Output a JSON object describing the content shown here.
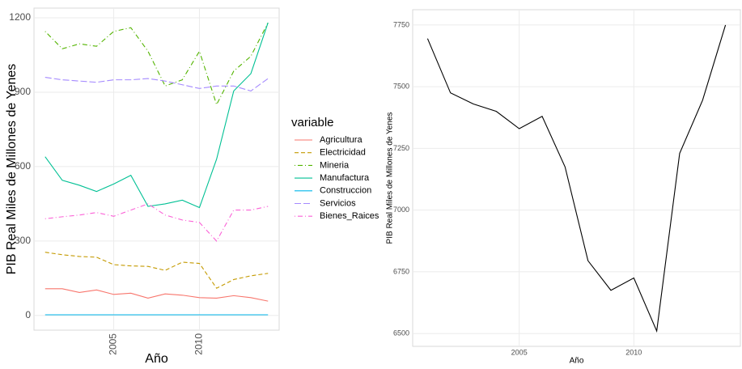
{
  "chart_data": [
    {
      "type": "line",
      "x_label": "Año",
      "y_label": "PIB Real Miles de Millones de Yenes",
      "x": [
        2001,
        2002,
        2003,
        2004,
        2005,
        2006,
        2007,
        2008,
        2009,
        2010,
        2011,
        2012,
        2013,
        2014
      ],
      "xlim": [
        2000.35,
        2014.65
      ],
      "xticks": [
        2005,
        2010
      ],
      "ylim": [
        -59,
        1239
      ],
      "yticks": [
        0,
        300,
        600,
        900,
        1200
      ],
      "grid": true,
      "legend_title": "variable",
      "legend": "right",
      "series": [
        {
          "name": "Agricultura",
          "color": "#F8766D",
          "dash": "solid",
          "values": [
            108,
            108,
            93,
            103,
            85,
            90,
            70,
            87,
            82,
            72,
            70,
            80,
            72,
            58
          ]
        },
        {
          "name": "Electricidad",
          "color": "#C49A00",
          "dash": "dashed",
          "values": [
            255,
            245,
            238,
            235,
            205,
            200,
            198,
            182,
            215,
            210,
            110,
            145,
            160,
            170
          ]
        },
        {
          "name": "Mineria",
          "color": "#53B400",
          "dash": "dotdash",
          "values": [
            1145,
            1075,
            1095,
            1085,
            1145,
            1160,
            1065,
            925,
            950,
            1065,
            850,
            985,
            1045,
            1180
          ]
        },
        {
          "name": "Manufactura",
          "color": "#00C094",
          "dash": "solid",
          "values": [
            640,
            545,
            525,
            500,
            530,
            565,
            440,
            450,
            465,
            435,
            630,
            905,
            975,
            1180
          ]
        },
        {
          "name": "Construccion",
          "color": "#00B6EB",
          "dash": "solid",
          "values": [
            3,
            3,
            3,
            3,
            3,
            3,
            3,
            3,
            3,
            3,
            3,
            3,
            3,
            3
          ]
        },
        {
          "name": "Servicios",
          "color": "#A58AFF",
          "dash": "longdash",
          "values": [
            960,
            950,
            945,
            940,
            950,
            950,
            955,
            945,
            930,
            915,
            925,
            925,
            905,
            955
          ]
        },
        {
          "name": "Bienes_Raices",
          "color": "#FB61D7",
          "dash": "dotdash",
          "values": [
            390,
            398,
            405,
            415,
            400,
            425,
            450,
            405,
            385,
            375,
            300,
            425,
            425,
            440
          ]
        }
      ]
    },
    {
      "type": "line",
      "x_label": "Año",
      "y_label": "PIB Real Miles de Millones de Yenes",
      "x": [
        2001,
        2002,
        2003,
        2004,
        2005,
        2006,
        2007,
        2008,
        2009,
        2010,
        2011,
        2012,
        2013,
        2014
      ],
      "xlim": [
        2000.35,
        2014.65
      ],
      "xticks": [
        2005,
        2010
      ],
      "ylim": [
        6448,
        7812
      ],
      "yticks": [
        6500,
        6750,
        7000,
        7250,
        7500,
        7750
      ],
      "grid": true,
      "series": [
        {
          "color": "#000000",
          "dash": "solid",
          "values": [
            7695,
            7475,
            7430,
            7400,
            7330,
            7380,
            7175,
            6795,
            6675,
            6725,
            6510,
            7230,
            7445,
            7750
          ]
        }
      ]
    }
  ]
}
